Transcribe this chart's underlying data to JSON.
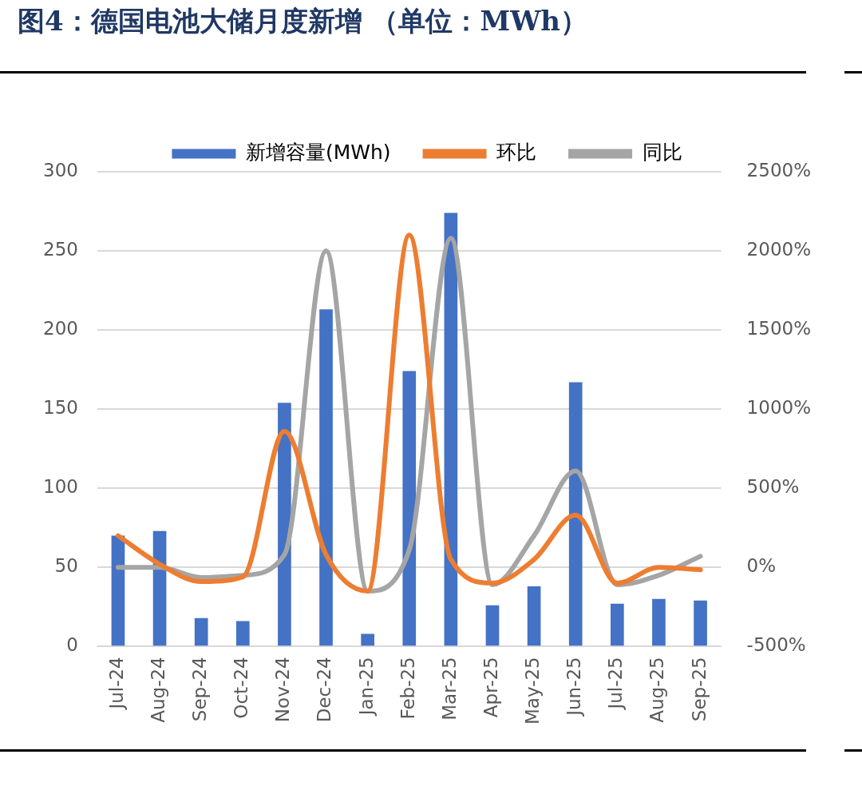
{
  "chart_data": {
    "type": "bar",
    "title": "图4：德国电池大储月度新增 （单位：MWh）",
    "categories": [
      "Jul-24",
      "Aug-24",
      "Sep-24",
      "Oct-24",
      "Nov-24",
      "Dec-24",
      "Jan-25",
      "Feb-25",
      "Mar-25",
      "Apr-25",
      "May-25",
      "Jun-25",
      "Jul-25",
      "Aug-25",
      "Sep-25"
    ],
    "series": [
      {
        "name": "新增容量(MWh)",
        "color": "#4472c4",
        "values": [
          70,
          73,
          18,
          16,
          154,
          213,
          8,
          174,
          274,
          26,
          38,
          167,
          27,
          30,
          29
        ]
      },
      {
        "name": "环比",
        "type": "line",
        "axis": "y2",
        "color": "#ed7d31",
        "values": [
          200,
          20,
          -90,
          -60,
          860,
          80,
          -150,
          2100,
          50,
          -100,
          50,
          330,
          -100,
          0,
          -15
        ]
      },
      {
        "name": "同比",
        "type": "line",
        "axis": "y2",
        "color": "#a5a5a5",
        "values": [
          0,
          0,
          -65,
          -50,
          80,
          2000,
          -150,
          110,
          2080,
          -110,
          200,
          610,
          -110,
          -50,
          70
        ]
      }
    ],
    "ylim": [
      0,
      300
    ],
    "yticks": [
      0,
      50,
      100,
      150,
      200,
      250,
      300
    ],
    "y2lim": [
      -500,
      2500
    ],
    "y2ticks": [
      {
        "value": -500,
        "label": "-500%"
      },
      {
        "value": 0,
        "label": "0%"
      },
      {
        "value": 500,
        "label": "500%"
      },
      {
        "value": 1000,
        "label": "1000%"
      },
      {
        "value": 1500,
        "label": "1500%"
      },
      {
        "value": 2000,
        "label": "2000%"
      },
      {
        "value": 2500,
        "label": "2500%"
      }
    ],
    "grid": "y",
    "legend": "top",
    "marker": "none"
  }
}
